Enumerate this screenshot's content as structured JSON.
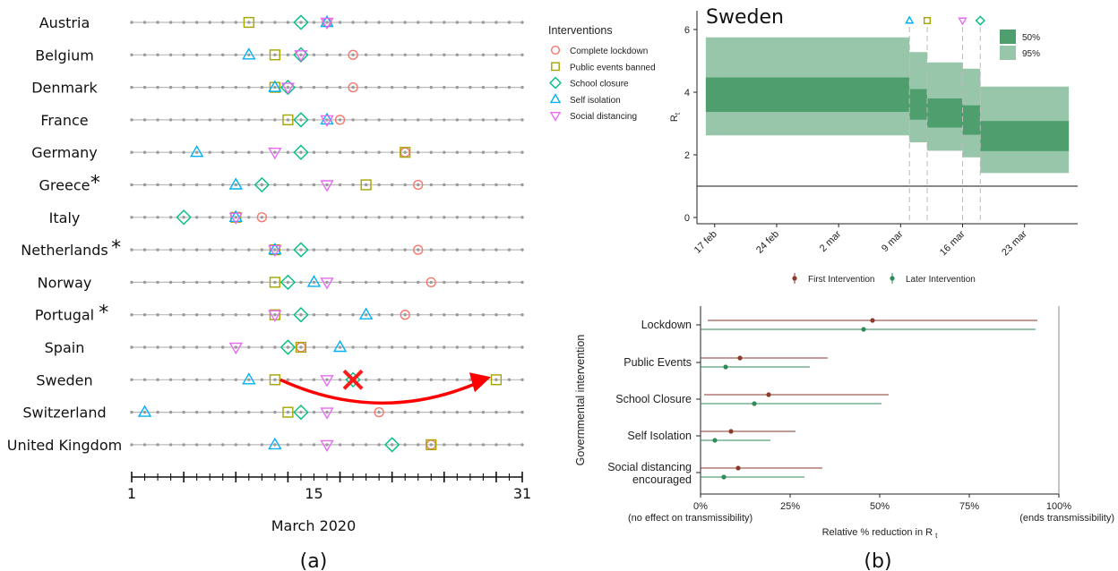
{
  "chart_data": [
    {
      "type": "scatter",
      "panel_label": "(a)",
      "xlabel": "March 2020",
      "xlim": [
        1,
        31
      ],
      "xticks": [
        1,
        15,
        31
      ],
      "legend_title": "Interventions",
      "legend": [
        {
          "key": "lockdown",
          "name": "Complete lockdown",
          "color": "#F8766D"
        },
        {
          "key": "events",
          "name": "Public events banned",
          "color": "#A3A500"
        },
        {
          "key": "school",
          "name": "School closure",
          "color": "#00BF7D"
        },
        {
          "key": "isolation",
          "name": "Self isolation",
          "color": "#00B0F6"
        },
        {
          "key": "distancing",
          "name": "Social distancing",
          "color": "#E76BF3"
        }
      ],
      "countries": [
        {
          "name": "Austria",
          "star": false,
          "events": 10,
          "school": 14,
          "isolation": 16,
          "distancing": 16,
          "lockdown": 16
        },
        {
          "name": "Belgium",
          "star": false,
          "events": 12,
          "school": 14,
          "isolation": 10,
          "distancing": 14,
          "lockdown": 18
        },
        {
          "name": "Denmark",
          "star": false,
          "events": 12,
          "school": 13,
          "isolation": 12,
          "distancing": 13,
          "lockdown": 18
        },
        {
          "name": "France",
          "star": false,
          "events": 13,
          "school": 14,
          "isolation": 16,
          "distancing": 16,
          "lockdown": 17
        },
        {
          "name": "Germany",
          "star": false,
          "events": 22,
          "school": 14,
          "isolation": 6,
          "distancing": 12,
          "lockdown": 22
        },
        {
          "name": "Greece",
          "star": true,
          "events": 19,
          "school": 11,
          "isolation": 9,
          "distancing": 16,
          "lockdown": 23
        },
        {
          "name": "Italy",
          "star": false,
          "events": 9,
          "school": 5,
          "isolation": 9,
          "distancing": 9,
          "lockdown": 11
        },
        {
          "name": "Netherlands",
          "star": true,
          "events": 12,
          "school": 14,
          "isolation": 12,
          "distancing": 12,
          "lockdown": 23
        },
        {
          "name": "Norway",
          "star": false,
          "events": 12,
          "school": 13,
          "isolation": 15,
          "distancing": 16,
          "lockdown": 24
        },
        {
          "name": "Portugal",
          "star": true,
          "events": 12,
          "school": 14,
          "isolation": 19,
          "distancing": 12,
          "lockdown": 22
        },
        {
          "name": "Spain",
          "star": false,
          "events": 14,
          "school": 13,
          "isolation": 17,
          "distancing": 9,
          "lockdown": 14
        },
        {
          "name": "Sweden",
          "star": false,
          "events": 12,
          "school": 18,
          "isolation": 10,
          "distancing": 16,
          "lockdown": null
        },
        {
          "name": "Switzerland",
          "star": false,
          "events": 13,
          "school": 14,
          "isolation": 2,
          "distancing": 16,
          "lockdown": 20
        },
        {
          "name": "United Kingdom",
          "star": false,
          "events": 24,
          "school": 21,
          "isolation": 12,
          "distancing": 16,
          "lockdown": 24
        }
      ],
      "sweden_annotation": {
        "removed": "school",
        "removed_day": 18,
        "moved_to_day": 29,
        "moved": "events"
      }
    },
    {
      "type": "area",
      "panel_label": "(b)",
      "title": "Sweden",
      "ylabel": "R",
      "ylabel_sub": "t",
      "ylim": [
        -0.2,
        6.6
      ],
      "yticks": [
        0,
        2,
        4,
        6
      ],
      "reference_line": 1,
      "xticks": [
        "17 feb",
        "24 feb",
        "2 mar",
        "9 mar",
        "16 mar",
        "23 mar"
      ],
      "legend": [
        {
          "name": "50%",
          "color": "#4E9E6E"
        },
        {
          "name": "95%",
          "color": "#97C6AA"
        }
      ],
      "segments": [
        {
          "start": "16 feb",
          "end": "10 mar",
          "lo95": 2.62,
          "hi95": 5.75,
          "lo50": 3.37,
          "hi50": 4.47
        },
        {
          "start": "10 mar",
          "end": "12 mar",
          "lo95": 2.4,
          "hi95": 5.28,
          "lo50": 3.12,
          "hi50": 4.1
        },
        {
          "start": "12 mar",
          "end": "16 mar",
          "lo95": 2.13,
          "hi95": 4.95,
          "lo50": 2.87,
          "hi50": 3.8
        },
        {
          "start": "16 mar",
          "end": "18 mar",
          "lo95": 1.92,
          "hi95": 4.75,
          "lo50": 2.64,
          "hi50": 3.58
        },
        {
          "start": "18 mar",
          "end": "28 mar",
          "lo95": 1.42,
          "hi95": 4.18,
          "lo50": 2.12,
          "hi50": 3.08
        }
      ],
      "intervention_markers": [
        {
          "key": "isolation",
          "date": "10 mar"
        },
        {
          "key": "events",
          "date": "12 mar"
        },
        {
          "key": "distancing",
          "date": "16 mar"
        },
        {
          "key": "school",
          "date": "18 mar"
        }
      ]
    },
    {
      "type": "scatter",
      "ylabel": "Governmental intervention",
      "xlabel": "Relative % reduction in R",
      "xlabel_sub": "t",
      "xlim": [
        0,
        100
      ],
      "xticks": [
        "0%",
        "25%",
        "50%",
        "75%",
        "100%"
      ],
      "left_note": "(no effect on transmissibility)",
      "right_note": "(ends transmissibility)",
      "series": [
        {
          "name": "First Intervention",
          "color": "#8B3A2B"
        },
        {
          "name": "Later Intervention",
          "color": "#2E8B57"
        }
      ],
      "categories": [
        "Lockdown",
        "Public Events",
        "School Closure",
        "Self Isolation",
        "Social distancing encouraged"
      ],
      "category_lines": [
        [
          "Lockdown"
        ],
        [
          "Public Events"
        ],
        [
          "School Closure"
        ],
        [
          "Self Isolation"
        ],
        [
          "Social distancing",
          "encouraged"
        ]
      ],
      "values": [
        {
          "first": [
            48,
            2,
            94
          ],
          "later": [
            45.5,
            0,
            93.5
          ]
        },
        {
          "first": [
            11,
            0,
            35.5
          ],
          "later": [
            7,
            0,
            30.5
          ]
        },
        {
          "first": [
            19,
            1,
            52.5
          ],
          "later": [
            15,
            0,
            50.5
          ]
        },
        {
          "first": [
            8.5,
            0,
            26.5
          ],
          "later": [
            4,
            0,
            19.5
          ]
        },
        {
          "first": [
            10.5,
            0,
            34
          ],
          "later": [
            6.5,
            0,
            29
          ]
        }
      ]
    }
  ]
}
